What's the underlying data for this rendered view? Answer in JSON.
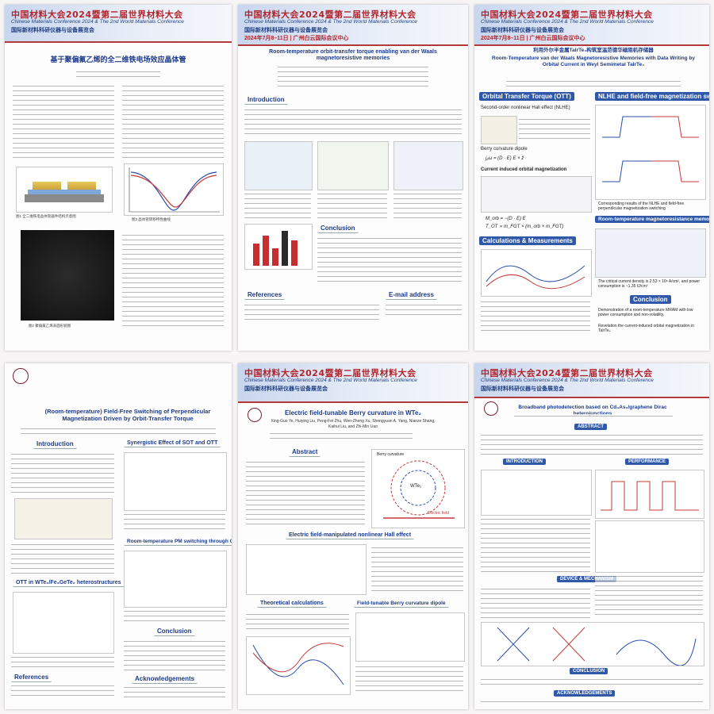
{
  "conference": {
    "cn": "中国材料大会2024暨第二届世界材料大会",
    "en": "Chinese Materials Conference 2024 & The 2nd World Materials Conference",
    "expo": "国际新材料科研仪器与设备展览会",
    "cn_short": "第二届世界材料大会",
    "date": "2024年7月8–11日 | 广州白云国际会议中心"
  },
  "posters": [
    {
      "id": "p1",
      "title": "基于聚偏氟乙烯的全二维铁电场效应晶体管",
      "figure_captions": [
        "图1 全二维铁电晶体管器件结构示意图",
        "图2 聚偏氟乙烯表面形貌图",
        "图3 晶体管转移特性曲线"
      ]
    },
    {
      "id": "p2",
      "title": "Room-temperature orbit-transfer torque enabling van der Waals magnetoresistive memories",
      "sections": [
        "Introduction",
        "Conclusion",
        "References",
        "E-mail address"
      ]
    },
    {
      "id": "p3",
      "title_cn": "利用外尔半金属TaIrTe₄构筑室温范德华磁阻机存储器",
      "title_en": "Room-Temperature van der Waals Magnetoresistive Memories with Data Writing by Orbital Current in Weyl Semimetal TaIrTe₄",
      "sections": [
        "Orbital Transfer Torque (OTT)",
        "NLHE and field-free magnetization switching",
        "Room-temperature magnetoresistance memory",
        "Calculations & Measurements",
        "Conclusion"
      ],
      "bullets": [
        "Second-order nonlinear Hall effect (NLHE)",
        "Berry curvature dipole",
        "Current induced orbital magnetization",
        "Corresponding results of the NLHE and field-free perpendicular magnetization switching",
        "The critical current density is 2.53 × 10⁶ A/cm², and power consumption is ~1.35 fJ/cm²"
      ],
      "conclusion": [
        "Demonstration of a room-temperature MRAM with low power consumption and non-volatility.",
        "Revelation the current-induced orbital magnetization in TaIrTe₄"
      ],
      "equations": [
        "j₂ω = (D · E) E × ẑ",
        "M_orb = −(D · E) E",
        "T_OT ∝ m_FGT × (m_orb × m_FGT)"
      ]
    },
    {
      "id": "p4",
      "title": "(Room-temperature) Field-Free Switching of Perpendicular Magnetization Driven by Orbit-Transfer Torque",
      "sections": [
        "Introduction",
        "Synergistic Effect of SOT and OTT",
        "Room-temperature PM switching through OTT",
        "OTT in WTe₂/Fe₃GeTe₂ heterostructures",
        "Conclusion",
        "References",
        "Acknowledgements"
      ]
    },
    {
      "id": "p5",
      "title": "Electric field-tunable Berry curvature in WTe₂",
      "authors": "Xing-Guo Ye, Huiying Liu, Peng-Fei Zhu, Wen-Zheng Xu, Shengyuan A. Yang, Nianze Shang, Kaihui Liu, and Zhi-Min Liao",
      "sections": [
        "Abstract",
        "Electric field-manipulated nonlinear Hall effect",
        "Theoretical calculations",
        "Field-tunable Berry curvature dipole"
      ],
      "labels": [
        "WTe₂",
        "Berry curvature",
        "Electric field"
      ]
    },
    {
      "id": "p6",
      "title": "Broadband photodetection based on Cd₃As₂/graphene Dirac heterojunctions",
      "sections": [
        "ABSTRACT",
        "INTRODUCTION",
        "PERFORMANCE",
        "DEVICE & MECHANISM",
        "CONCLUSION",
        "ACKNOWLEDGEMENTS"
      ]
    }
  ]
}
